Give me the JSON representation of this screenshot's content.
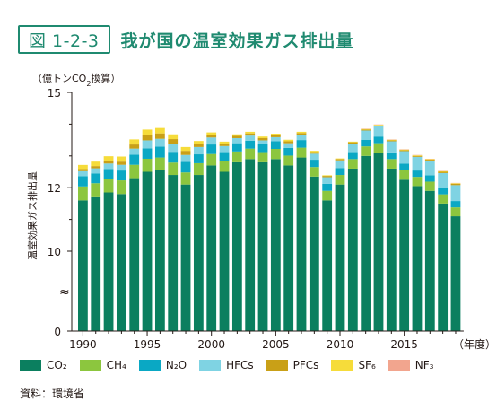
{
  "figure": {
    "number": "図 1-2-3",
    "title": "我が国の温室効果ガス排出量"
  },
  "unit_label_prefix": "（億トンCO",
  "unit_label_sub": "2",
  "unit_label_suffix": "換算）",
  "y_axis_title": "温室効果ガス排出量",
  "axis_break_symbol": "≈",
  "x_axis_suffix": "（年度）",
  "source": "資料：環境省",
  "legend": [
    {
      "label": "CO₂",
      "color": "#0b7f5f"
    },
    {
      "label": "CH₄",
      "color": "#8cc63e"
    },
    {
      "label": "N₂O",
      "color": "#0aa8c4"
    },
    {
      "label": "HFCs",
      "color": "#7fd3e3"
    },
    {
      "label": "PFCs",
      "color": "#c9a017"
    },
    {
      "label": "SF₆",
      "color": "#f6dc3a"
    },
    {
      "label": "NF₃",
      "color": "#f2a58e"
    }
  ],
  "chart_data": {
    "type": "bar",
    "stacked": true,
    "axis_break": true,
    "categories": [
      1990,
      1991,
      1992,
      1993,
      1994,
      1995,
      1996,
      1997,
      1998,
      1999,
      2000,
      2001,
      2002,
      2003,
      2004,
      2005,
      2006,
      2007,
      2008,
      2009,
      2010,
      2011,
      2012,
      2013,
      2014,
      2015,
      2016,
      2017,
      2018,
      2019
    ],
    "x_tick_labels": [
      "1990",
      "1995",
      "2000",
      "2005",
      "2010",
      "2015"
    ],
    "y_tick_labels": [
      "0",
      "10",
      "12",
      "15"
    ],
    "ylabel": "温室効果ガス排出量",
    "series": [
      {
        "name": "CO₂",
        "values": [
          11.6,
          11.7,
          11.85,
          11.8,
          12.3,
          12.5,
          12.55,
          12.4,
          12.1,
          12.4,
          12.7,
          12.5,
          12.8,
          12.9,
          12.8,
          12.9,
          12.7,
          12.95,
          12.35,
          11.6,
          12.1,
          12.6,
          13.0,
          13.1,
          12.6,
          12.25,
          12.05,
          11.9,
          11.5,
          11.1
        ]
      },
      {
        "name": "CH₄",
        "values": [
          0.44,
          0.44,
          0.43,
          0.43,
          0.42,
          0.41,
          0.4,
          0.39,
          0.38,
          0.37,
          0.36,
          0.35,
          0.34,
          0.33,
          0.32,
          0.32,
          0.31,
          0.31,
          0.3,
          0.3,
          0.3,
          0.3,
          0.3,
          0.3,
          0.3,
          0.3,
          0.29,
          0.29,
          0.29,
          0.28
        ]
      },
      {
        "name": "N₂O",
        "values": [
          0.32,
          0.31,
          0.31,
          0.31,
          0.32,
          0.33,
          0.34,
          0.34,
          0.33,
          0.28,
          0.3,
          0.27,
          0.26,
          0.25,
          0.25,
          0.24,
          0.24,
          0.24,
          0.23,
          0.22,
          0.22,
          0.22,
          0.21,
          0.21,
          0.21,
          0.21,
          0.2,
          0.2,
          0.2,
          0.2
        ]
      },
      {
        "name": "HFCs",
        "values": [
          0.16,
          0.16,
          0.17,
          0.18,
          0.19,
          0.25,
          0.25,
          0.24,
          0.22,
          0.23,
          0.22,
          0.19,
          0.16,
          0.16,
          0.12,
          0.13,
          0.15,
          0.17,
          0.19,
          0.21,
          0.24,
          0.27,
          0.29,
          0.32,
          0.35,
          0.39,
          0.43,
          0.45,
          0.47,
          0.5
        ]
      },
      {
        "name": "PFCs",
        "values": [
          0.066,
          0.07,
          0.08,
          0.1,
          0.13,
          0.18,
          0.17,
          0.16,
          0.13,
          0.1,
          0.09,
          0.08,
          0.07,
          0.07,
          0.07,
          0.06,
          0.06,
          0.05,
          0.05,
          0.04,
          0.04,
          0.04,
          0.03,
          0.03,
          0.03,
          0.03,
          0.03,
          0.04,
          0.04,
          0.04
        ]
      },
      {
        "name": "SF₆",
        "values": [
          0.13,
          0.14,
          0.15,
          0.16,
          0.16,
          0.16,
          0.17,
          0.15,
          0.12,
          0.09,
          0.07,
          0.06,
          0.05,
          0.05,
          0.05,
          0.05,
          0.05,
          0.04,
          0.04,
          0.02,
          0.02,
          0.02,
          0.02,
          0.02,
          0.02,
          0.02,
          0.02,
          0.02,
          0.02,
          0.02
        ]
      },
      {
        "name": "NF₃",
        "values": [
          0.0,
          0.0,
          0.0,
          0.0,
          0.0,
          0.0,
          0.0,
          0.0,
          0.0,
          0.0,
          0.0,
          0.0,
          0.0,
          0.0,
          0.0,
          0.0,
          0.0,
          0.0,
          0.0,
          0.0,
          0.0,
          0.0,
          0.01,
          0.01,
          0.01,
          0.01,
          0.01,
          0.01,
          0.01,
          0.01
        ]
      }
    ]
  }
}
